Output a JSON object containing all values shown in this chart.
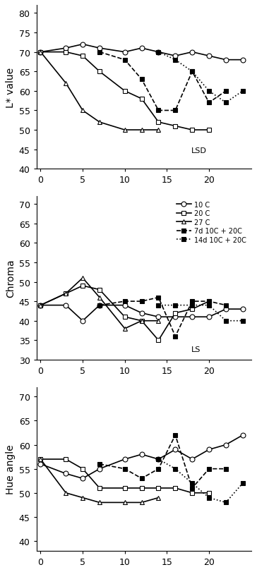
{
  "x_ticks": [
    0,
    5,
    10,
    15,
    20
  ],
  "xlim": [
    -0.5,
    25
  ],
  "series_order": [
    "10C",
    "20C",
    "27C",
    "7d10C+20C",
    "14d10C+20C"
  ],
  "series": {
    "10C": {
      "x_L": [
        0,
        3,
        5,
        7,
        10,
        12,
        14,
        16,
        18,
        20,
        22,
        24
      ],
      "y_L": [
        70,
        71,
        72,
        71,
        70,
        71,
        70,
        69,
        70,
        69,
        68,
        68
      ],
      "x_C": [
        0,
        3,
        5,
        7,
        10,
        12,
        14,
        16,
        18,
        20,
        22,
        24
      ],
      "y_C": [
        44,
        44,
        40,
        44,
        44,
        42,
        41,
        41,
        41,
        41,
        43,
        43
      ],
      "x_H": [
        0,
        3,
        5,
        7,
        10,
        12,
        14,
        16,
        18,
        20,
        22,
        24
      ],
      "y_H": [
        56,
        54,
        53,
        55,
        57,
        58,
        57,
        59,
        57,
        59,
        60,
        62
      ],
      "marker": "o",
      "linestyle": "-",
      "filled": false,
      "label": "10 C"
    },
    "20C": {
      "x_L": [
        0,
        3,
        5,
        7,
        10,
        12,
        14,
        16,
        18,
        20
      ],
      "y_L": [
        70,
        70,
        69,
        65,
        60,
        58,
        52,
        51,
        50,
        50
      ],
      "x_C": [
        0,
        3,
        5,
        7,
        10,
        12,
        14,
        16,
        18,
        20
      ],
      "y_C": [
        44,
        47,
        49,
        48,
        41,
        40,
        35,
        42,
        43,
        45
      ],
      "x_H": [
        0,
        3,
        5,
        7,
        10,
        12,
        14,
        16,
        18,
        20
      ],
      "y_H": [
        57,
        57,
        55,
        51,
        51,
        51,
        51,
        51,
        50,
        50
      ],
      "marker": "s",
      "linestyle": "-",
      "filled": false,
      "label": "20 C"
    },
    "27C": {
      "x_L": [
        0,
        3,
        5,
        7,
        10,
        12,
        14
      ],
      "y_L": [
        70,
        62,
        55,
        52,
        50,
        50,
        50
      ],
      "x_C": [
        0,
        3,
        5,
        7,
        10,
        12,
        14
      ],
      "y_C": [
        44,
        47,
        51,
        46,
        38,
        40,
        40
      ],
      "x_H": [
        0,
        3,
        5,
        7,
        10,
        12,
        14
      ],
      "y_H": [
        57,
        50,
        49,
        48,
        48,
        48,
        49
      ],
      "marker": "^",
      "linestyle": "-",
      "filled": false,
      "label": "27 C"
    },
    "7d10C+20C": {
      "x_L": [
        7,
        10,
        12,
        14,
        16,
        18,
        20,
        22
      ],
      "y_L": [
        70,
        68,
        63,
        55,
        55,
        65,
        57,
        60
      ],
      "x_C": [
        7,
        10,
        12,
        14,
        16,
        18,
        20,
        22
      ],
      "y_C": [
        44,
        45,
        45,
        46,
        36,
        45,
        45,
        44
      ],
      "x_H": [
        7,
        10,
        12,
        14,
        16,
        18,
        20,
        22
      ],
      "y_H": [
        56,
        55,
        53,
        55,
        62,
        51,
        55,
        55
      ],
      "marker": "s",
      "linestyle": "--",
      "filled": true,
      "label": "7d 10C + 20C"
    },
    "14d10C+20C": {
      "x_L": [
        14,
        16,
        18,
        20,
        22,
        24
      ],
      "y_L": [
        70,
        68,
        65,
        60,
        57,
        60
      ],
      "x_C": [
        14,
        16,
        18,
        20,
        22,
        24
      ],
      "y_C": [
        44,
        44,
        44,
        44,
        40,
        40
      ],
      "x_H": [
        14,
        16,
        18,
        20,
        22,
        24
      ],
      "y_H": [
        57,
        55,
        52,
        49,
        48,
        52
      ],
      "marker": "s",
      "linestyle": ":",
      "filled": true,
      "label": "14d 10C + 20C"
    }
  },
  "L_ylim": [
    40,
    82
  ],
  "L_yticks": [
    40,
    45,
    50,
    55,
    60,
    65,
    70,
    75,
    80
  ],
  "Chroma_ylim": [
    30,
    72
  ],
  "Chroma_yticks": [
    30,
    35,
    40,
    45,
    50,
    55,
    60,
    65,
    70
  ],
  "Hue_ylim": [
    38,
    72
  ],
  "Hue_yticks": [
    40,
    45,
    50,
    55,
    60,
    65,
    70
  ],
  "bg": "#ffffff",
  "lw": 1.2,
  "ms": 5
}
